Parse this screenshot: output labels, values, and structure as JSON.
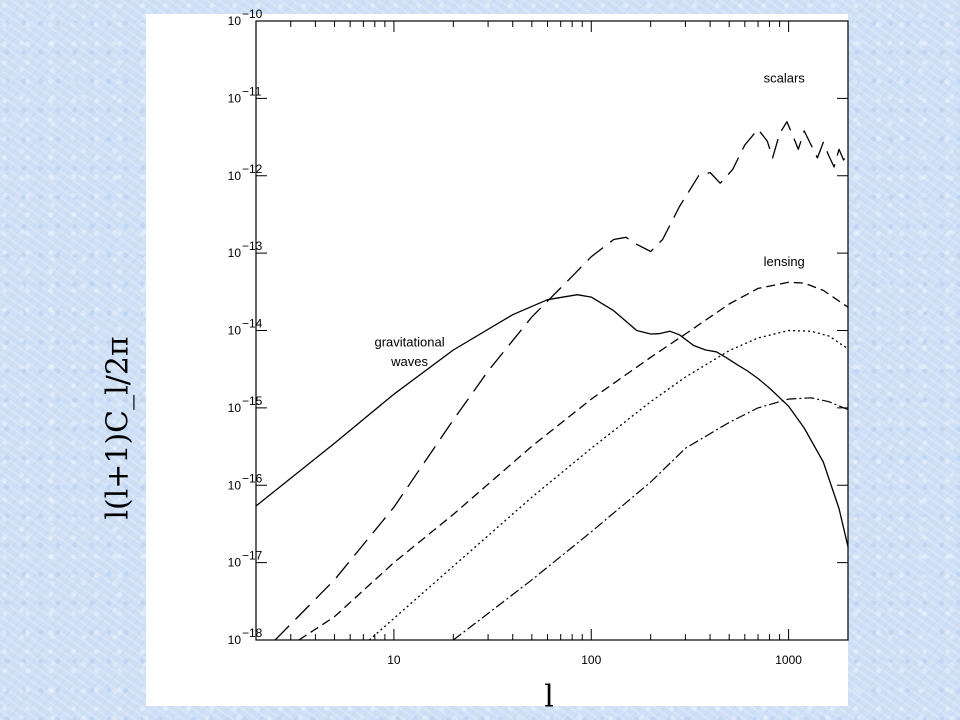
{
  "chart_data": {
    "type": "line",
    "x_scale": "log",
    "y_scale": "log",
    "xlim": [
      2,
      2000
    ],
    "ylim": [
      1e-18,
      1e-10
    ],
    "xlabel": "l",
    "ylabel": "l(l+1)C_l/2π",
    "x_ticks": [
      {
        "value": 10,
        "label": "10"
      },
      {
        "value": 100,
        "label": "100"
      },
      {
        "value": 1000,
        "label": "1000"
      }
    ],
    "y_ticks": [
      {
        "value": 1e-10,
        "mantissa": "10",
        "exp": "−10"
      },
      {
        "value": 1e-11,
        "mantissa": "10",
        "exp": "−11"
      },
      {
        "value": 1e-12,
        "mantissa": "10",
        "exp": "−12"
      },
      {
        "value": 1e-13,
        "mantissa": "10",
        "exp": "−13"
      },
      {
        "value": 1e-14,
        "mantissa": "10",
        "exp": "−14"
      },
      {
        "value": 1e-15,
        "mantissa": "10",
        "exp": "−15"
      },
      {
        "value": 1e-16,
        "mantissa": "10",
        "exp": "−16"
      },
      {
        "value": 1e-17,
        "mantissa": "10",
        "exp": "−17"
      },
      {
        "value": 1e-18,
        "mantissa": "10",
        "exp": "−18"
      }
    ],
    "annotations": [
      {
        "text": "scalars",
        "x": 950,
        "y": 1.6e-11,
        "anchor": "middle"
      },
      {
        "text": "lensing",
        "x": 950,
        "y": 6.8e-14,
        "anchor": "middle"
      },
      {
        "text": "gravitational",
        "x": 12,
        "y": 6.2e-15,
        "anchor": "middle"
      },
      {
        "text": "waves",
        "x": 12,
        "y": 3.5e-15,
        "anchor": "middle"
      }
    ],
    "series": [
      {
        "label": "scalars",
        "dash": "20 9",
        "stroke_width": 1.3,
        "points": [
          [
            2.5,
            1e-18
          ],
          [
            3,
            1.6e-18
          ],
          [
            5,
            6e-18
          ],
          [
            10,
            5.2e-17
          ],
          [
            20,
            7e-16
          ],
          [
            30,
            3e-15
          ],
          [
            50,
            1.5e-14
          ],
          [
            80,
            5e-14
          ],
          [
            100,
            9e-14
          ],
          [
            130,
            1.5e-13
          ],
          [
            150,
            1.6e-13
          ],
          [
            170,
            1.3e-13
          ],
          [
            200,
            1.05e-13
          ],
          [
            230,
            1.5e-13
          ],
          [
            280,
            4e-13
          ],
          [
            350,
            1e-12
          ],
          [
            400,
            1.1e-12
          ],
          [
            450,
            8e-13
          ],
          [
            520,
            1.2e-12
          ],
          [
            600,
            2.5e-12
          ],
          [
            700,
            4e-12
          ],
          [
            780,
            2.8e-12
          ],
          [
            830,
            1.7e-12
          ],
          [
            900,
            3.5e-12
          ],
          [
            980,
            5e-12
          ],
          [
            1050,
            3.3e-12
          ],
          [
            1120,
            2.2e-12
          ],
          [
            1200,
            3.8e-12
          ],
          [
            1300,
            2.5e-12
          ],
          [
            1400,
            1.7e-12
          ],
          [
            1500,
            2.7e-12
          ],
          [
            1600,
            1.8e-12
          ],
          [
            1700,
            1.3e-12
          ],
          [
            1800,
            2.2e-12
          ],
          [
            1900,
            1.6e-12
          ],
          [
            2000,
            1.9e-12
          ]
        ]
      },
      {
        "label": "lensing",
        "dash": "9 5",
        "stroke_width": 1.3,
        "points": [
          [
            3.3,
            1e-18
          ],
          [
            5,
            2e-18
          ],
          [
            10,
            1e-17
          ],
          [
            20,
            4.2e-17
          ],
          [
            50,
            3.2e-16
          ],
          [
            100,
            1.3e-15
          ],
          [
            200,
            4.5e-15
          ],
          [
            300,
            9e-15
          ],
          [
            500,
            2.2e-14
          ],
          [
            700,
            3.5e-14
          ],
          [
            1000,
            4.2e-14
          ],
          [
            1200,
            4.1e-14
          ],
          [
            1500,
            3.3e-14
          ],
          [
            2000,
            2e-14
          ]
        ]
      },
      {
        "label": "lensing-dotted",
        "dash": "2 3",
        "stroke_width": 1.3,
        "points": [
          [
            7.5,
            1e-18
          ],
          [
            10,
            1.9e-18
          ],
          [
            20,
            9e-18
          ],
          [
            50,
            7e-17
          ],
          [
            100,
            3e-16
          ],
          [
            200,
            1.2e-15
          ],
          [
            300,
            2.5e-15
          ],
          [
            500,
            5.5e-15
          ],
          [
            700,
            8e-15
          ],
          [
            1000,
            1e-14
          ],
          [
            1300,
            9.8e-15
          ],
          [
            1600,
            8.5e-15
          ],
          [
            2000,
            5.8e-15
          ]
        ]
      },
      {
        "label": "lensing-dashdot",
        "dash": "10 3 2 3",
        "stroke_width": 1.2,
        "points": [
          [
            20,
            1e-18
          ],
          [
            30,
            2.2e-18
          ],
          [
            50,
            6e-18
          ],
          [
            100,
            2.5e-17
          ],
          [
            200,
            1.1e-16
          ],
          [
            300,
            3e-16
          ],
          [
            500,
            6.5e-16
          ],
          [
            700,
            1e-15
          ],
          [
            1000,
            1.3e-15
          ],
          [
            1300,
            1.35e-15
          ],
          [
            1600,
            1.2e-15
          ],
          [
            2000,
            9.5e-16
          ]
        ]
      },
      {
        "label": "gravitational waves",
        "dash": "",
        "stroke_width": 1.3,
        "points": [
          [
            2,
            5.4e-17
          ],
          [
            5,
            3.5e-16
          ],
          [
            10,
            1.5e-15
          ],
          [
            20,
            5.6e-15
          ],
          [
            40,
            1.6e-14
          ],
          [
            60,
            2.5e-14
          ],
          [
            85,
            2.9e-14
          ],
          [
            100,
            2.7e-14
          ],
          [
            130,
            1.8e-14
          ],
          [
            170,
            1e-14
          ],
          [
            200,
            9e-15
          ],
          [
            220,
            9.1e-15
          ],
          [
            250,
            9.8e-15
          ],
          [
            280,
            8.8e-15
          ],
          [
            330,
            6.4e-15
          ],
          [
            380,
            5.6e-15
          ],
          [
            430,
            5.3e-15
          ],
          [
            480,
            4.5e-15
          ],
          [
            550,
            3.6e-15
          ],
          [
            620,
            3e-15
          ],
          [
            700,
            2.4e-15
          ],
          [
            800,
            1.8e-15
          ],
          [
            1000,
            1.05e-15
          ],
          [
            1200,
            5.5e-16
          ],
          [
            1500,
            2e-16
          ],
          [
            1800,
            5e-17
          ],
          [
            2000,
            1.6e-17
          ]
        ]
      }
    ]
  }
}
